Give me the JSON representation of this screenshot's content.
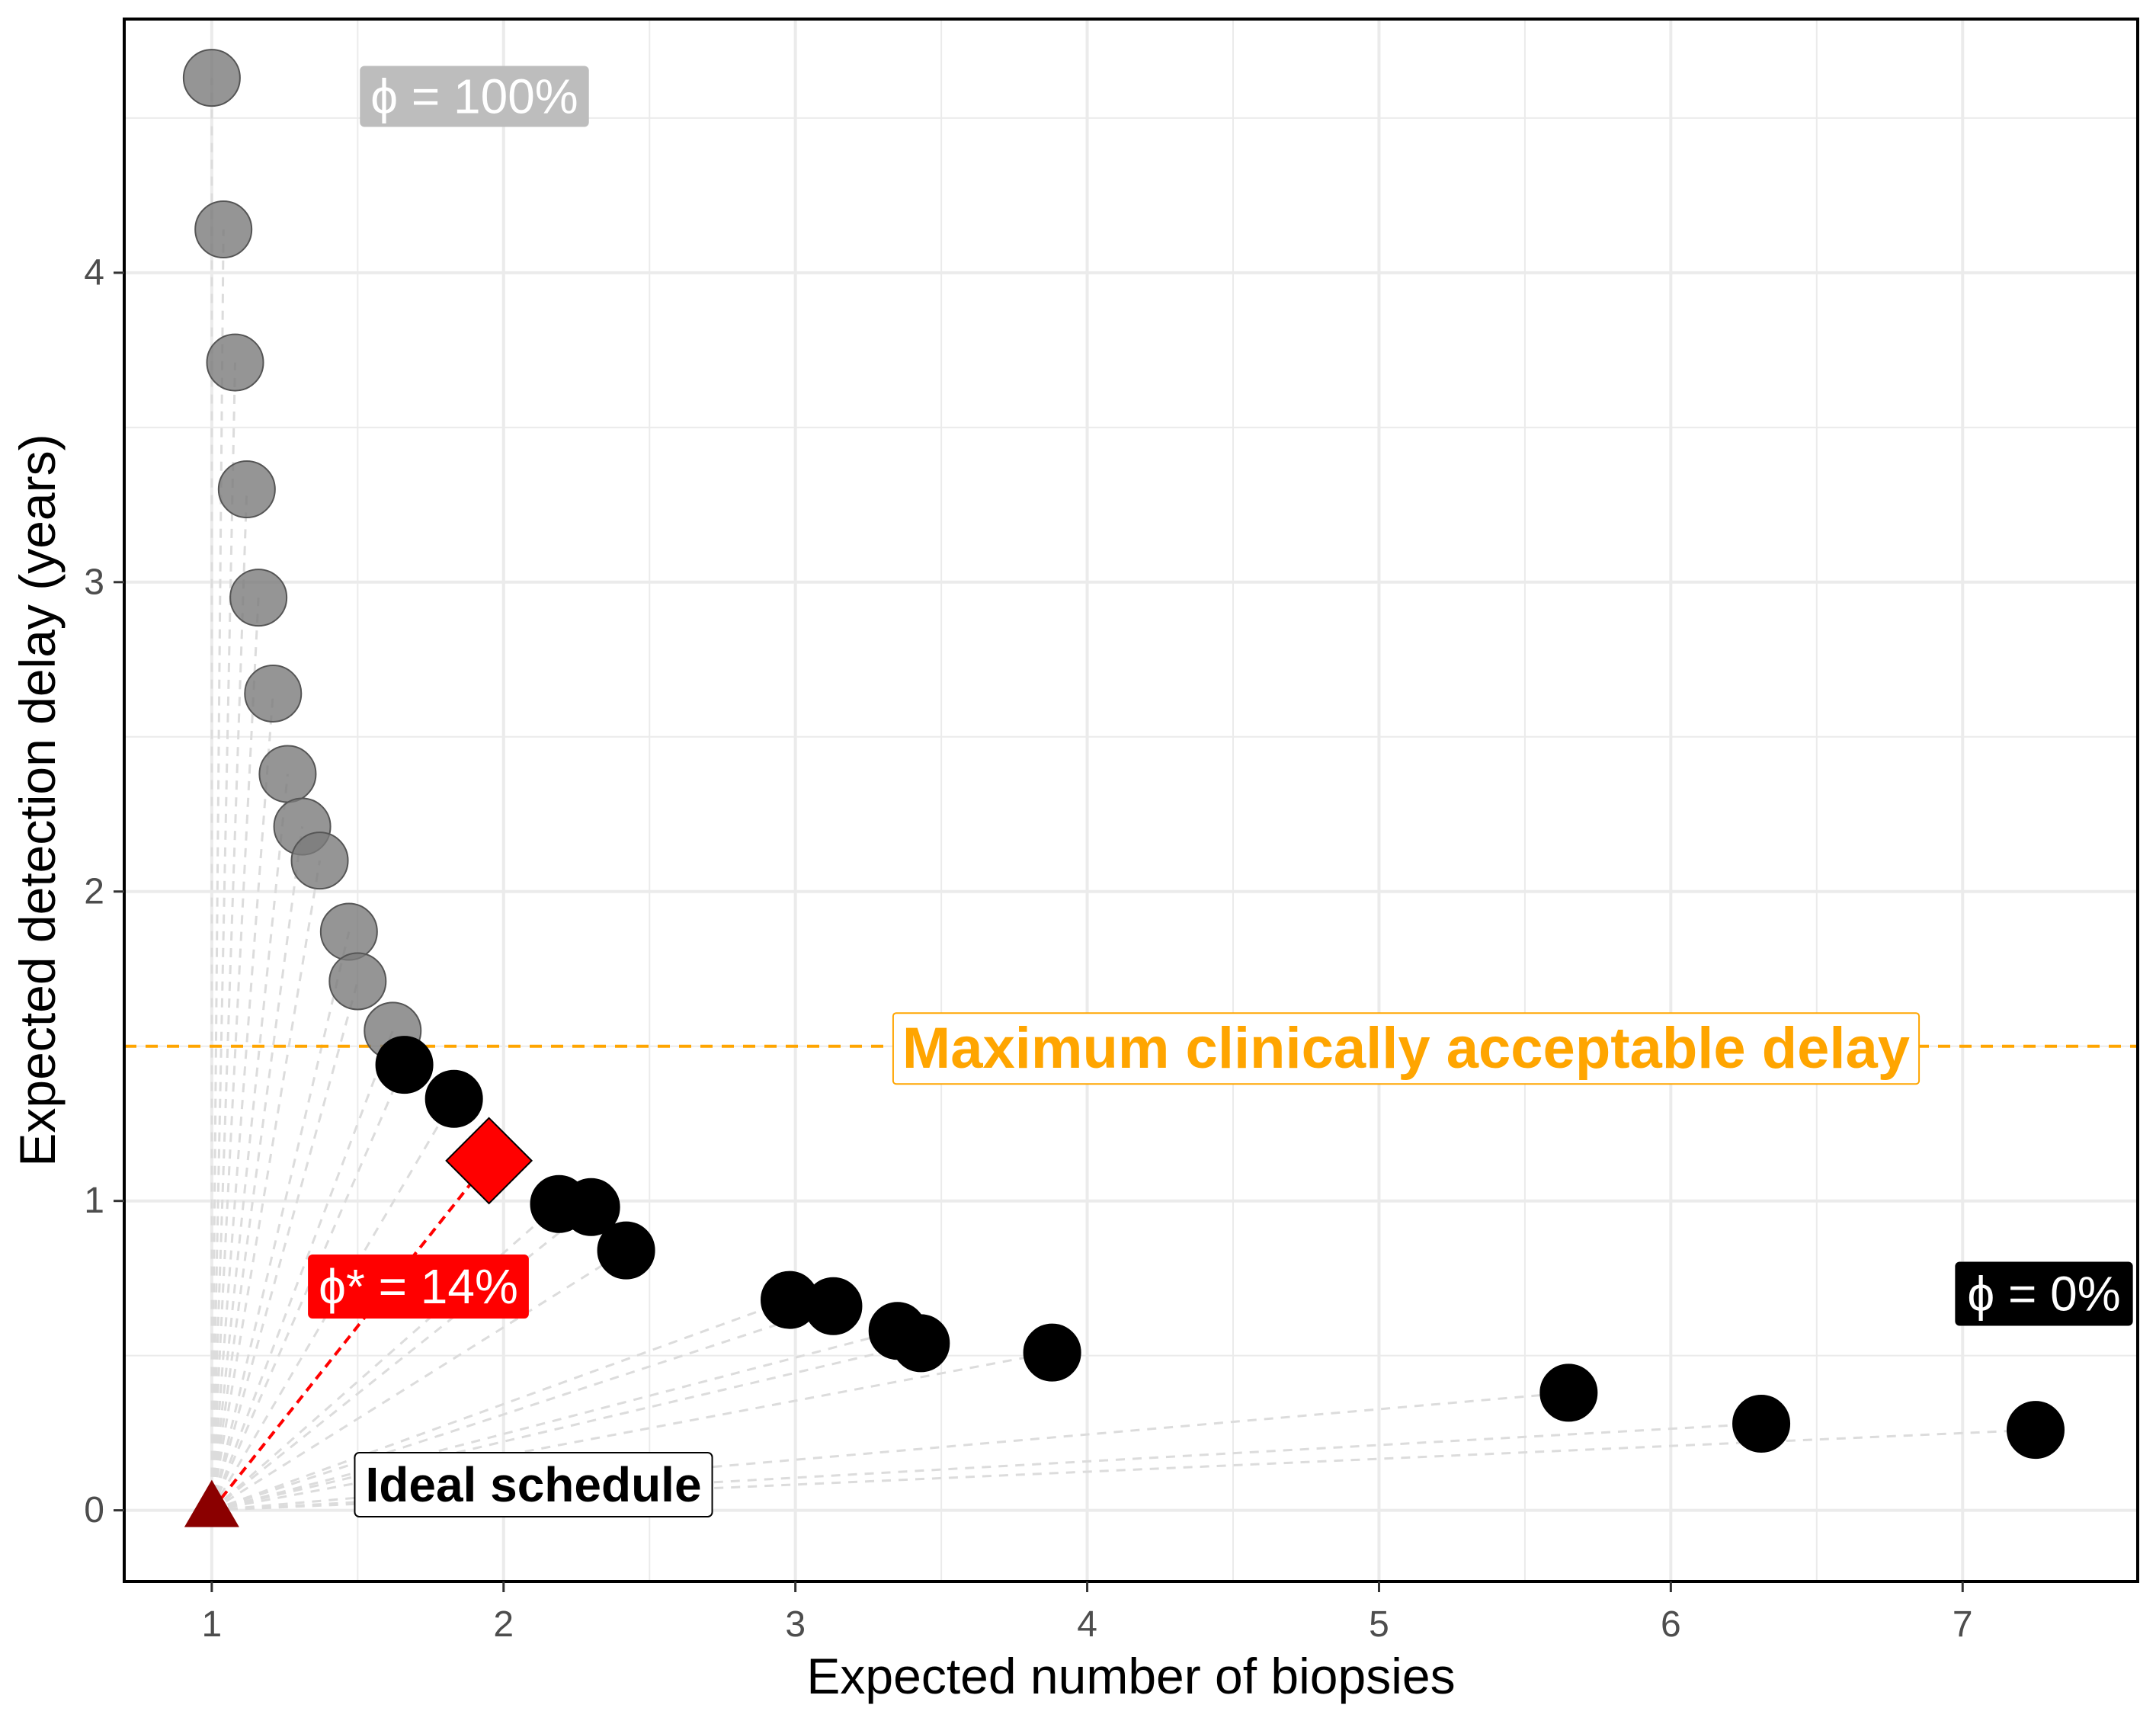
{
  "chart_data": {
    "type": "scatter",
    "xlabel": "Expected number of biopsies",
    "ylabel": "Expected detection delay (years)",
    "xlim": [
      0.7,
      7.6
    ],
    "ylim": [
      -0.23,
      4.82
    ],
    "x_ticks": [
      "1",
      "2",
      "3",
      "4",
      "5",
      "6",
      "7"
    ],
    "y_ticks": [
      "0",
      "1",
      "2",
      "3",
      "4"
    ],
    "grid": true,
    "threshold": {
      "y": 1.5,
      "label": "Maximum clinically acceptable delay",
      "color": "#FFA500"
    },
    "ideal": {
      "x": 1,
      "y": 0,
      "label": "Ideal schedule",
      "color": "#8B0000"
    },
    "optimal": {
      "x": 1.95,
      "y": 1.13,
      "label": "ϕ* = 14%",
      "color": "#FF0000"
    },
    "annotations": [
      {
        "label": "ϕ = 100%",
        "x": 1.9,
        "y": 4.57,
        "color": "#BDBDBD"
      },
      {
        "label": "ϕ = 0%",
        "x": 7.29,
        "y": 0.7,
        "color": "#000000"
      }
    ],
    "series": [
      {
        "color": "#7A7A7A",
        "x": [
          1.0,
          1.04,
          1.08,
          1.12,
          1.16,
          1.21,
          1.26,
          1.31,
          1.37,
          1.47,
          1.5,
          1.62
        ],
        "y": [
          4.63,
          4.14,
          3.71,
          3.3,
          2.95,
          2.64,
          2.38,
          2.21,
          2.1,
          1.87,
          1.71,
          1.55
        ]
      },
      {
        "color": "#000000",
        "x": [
          1.66,
          1.83,
          2.19,
          2.3,
          2.42,
          2.98,
          3.13,
          3.35,
          3.43,
          3.88,
          5.65,
          6.31,
          7.25
        ],
        "y": [
          1.44,
          1.33,
          0.99,
          0.98,
          0.84,
          0.68,
          0.66,
          0.58,
          0.54,
          0.51,
          0.38,
          0.28,
          0.26
        ]
      }
    ]
  }
}
